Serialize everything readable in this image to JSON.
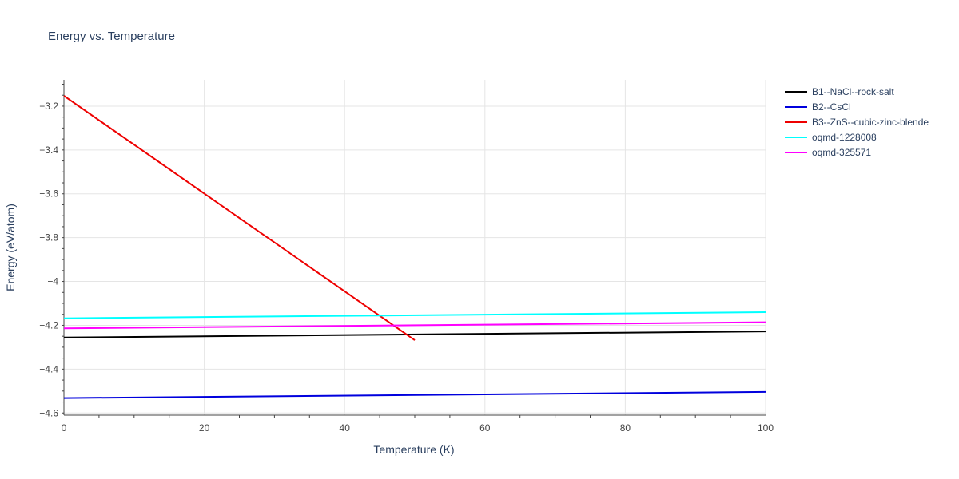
{
  "chart_data": {
    "type": "line",
    "title": "Energy vs. Temperature",
    "xlabel": "Temperature (K)",
    "ylabel": "Energy (eV/atom)",
    "xlim": [
      0,
      100
    ],
    "ylim": [
      -4.61,
      -3.08
    ],
    "x_ticks": [
      0,
      20,
      40,
      60,
      80,
      100
    ],
    "y_ticks": [
      -3.2,
      -3.4,
      -3.6,
      -3.8,
      -4,
      -4.2,
      -4.4,
      -4.6
    ],
    "x_tick_labels": [
      "0",
      "20",
      "40",
      "60",
      "80",
      "100"
    ],
    "y_tick_labels": [
      "−3.2",
      "−3.4",
      "−3.6",
      "−3.8",
      "−4",
      "−4.2",
      "−4.4",
      "−4.6"
    ],
    "grid": true,
    "legend_position": "top-right, outside plot",
    "series": [
      {
        "name": "B1--NaCl--rock-salt",
        "color": "#000000",
        "points": [
          [
            0,
            -4.256
          ],
          [
            100,
            -4.228
          ]
        ]
      },
      {
        "name": "B2--CsCl",
        "color": "#0000dd",
        "points": [
          [
            0,
            -4.532
          ],
          [
            100,
            -4.504
          ]
        ]
      },
      {
        "name": "B3--ZnS--cubic-zinc-blende",
        "color": "#ee0000",
        "points": [
          [
            0,
            -3.153
          ],
          [
            50,
            -4.268
          ]
        ]
      },
      {
        "name": "oqmd-1228008",
        "color": "#00ffff",
        "points": [
          [
            0,
            -4.168
          ],
          [
            100,
            -4.14
          ]
        ]
      },
      {
        "name": "oqmd-325571",
        "color": "#ff00ff",
        "points": [
          [
            0,
            -4.214
          ],
          [
            100,
            -4.186
          ]
        ]
      }
    ]
  }
}
